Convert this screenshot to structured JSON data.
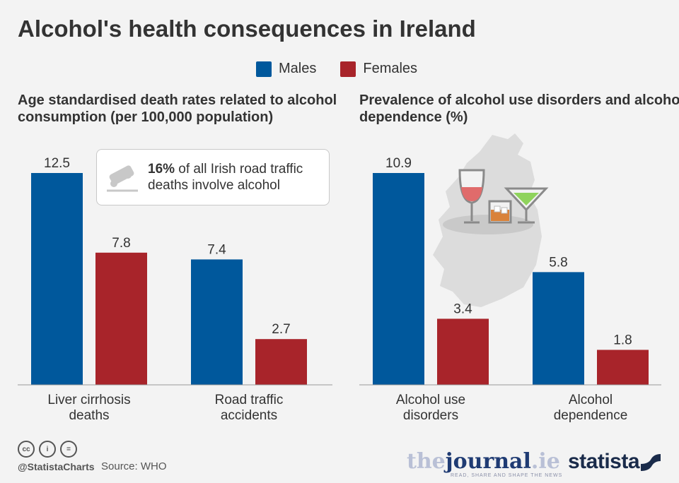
{
  "title": "Alcohol's health consequences in Ireland",
  "legend": [
    {
      "label": "Males",
      "color": "#00589c"
    },
    {
      "label": "Females",
      "color": "#a8242a"
    }
  ],
  "note": {
    "bold": "16%",
    "text": " of all Irish road traffic deaths involve alcohol"
  },
  "footer": {
    "handle": "@StatistaCharts",
    "source": "Source: WHO"
  },
  "brands": {
    "journal_left": "the",
    "journal_mid": "journal",
    "journal_right": ".ie",
    "journal_tag": "READ, SHARE AND SHAPE THE NEWS",
    "statista": "statista"
  },
  "chart_data": [
    {
      "type": "bar",
      "title": "Age standardised death rates related to alcohol consumption (per 100,000 population)",
      "categories": [
        "Liver cirrhosis deaths",
        "Road traffic accidents"
      ],
      "series": [
        {
          "name": "Males",
          "values": [
            12.5,
            7.4
          ],
          "color": "#00589c"
        },
        {
          "name": "Females",
          "values": [
            7.8,
            2.7
          ],
          "color": "#a8242a"
        }
      ],
      "ylim": [
        0,
        12.5
      ]
    },
    {
      "type": "bar",
      "title": "Prevalence of alcohol use disorders and alcohol dependence (%)",
      "categories": [
        "Alcohol use disorders",
        "Alcohol dependence"
      ],
      "series": [
        {
          "name": "Males",
          "values": [
            10.9,
            5.8
          ],
          "color": "#00589c"
        },
        {
          "name": "Females",
          "values": [
            3.4,
            1.8
          ],
          "color": "#a8242a"
        }
      ],
      "ylim": [
        0,
        10.9
      ]
    }
  ]
}
